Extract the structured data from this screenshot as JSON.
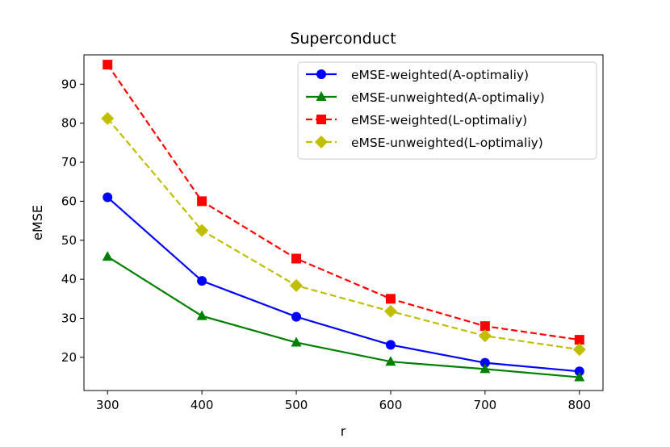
{
  "chart_data": {
    "type": "line",
    "title": "Superconduct",
    "xlabel": "r",
    "ylabel": "eMSE",
    "x": [
      300,
      400,
      500,
      600,
      700,
      800
    ],
    "xlim": [
      275,
      825
    ],
    "ylim": [
      11.5,
      97.5
    ],
    "xticks": [
      300,
      400,
      500,
      600,
      700,
      800
    ],
    "yticks": [
      20,
      30,
      40,
      50,
      60,
      70,
      80,
      90
    ],
    "grid": false,
    "legend_position": "top-right",
    "series": [
      {
        "name": "eMSE-weighted(A-optimaliy)",
        "values": [
          61.0,
          39.6,
          30.4,
          23.2,
          18.6,
          16.4
        ],
        "color": "#0000ff",
        "linestyle": "solid",
        "marker": "circle"
      },
      {
        "name": "eMSE-unweighted(A-optimaliy)",
        "values": [
          45.8,
          30.6,
          23.8,
          18.9,
          17.0,
          14.9
        ],
        "color": "#008000",
        "linestyle": "solid",
        "marker": "triangle"
      },
      {
        "name": "eMSE-weighted(L-optimaliy)",
        "values": [
          95.0,
          60.0,
          45.3,
          35.0,
          28.0,
          24.5
        ],
        "color": "#ff0000",
        "linestyle": "dashed",
        "marker": "square"
      },
      {
        "name": "eMSE-unweighted(L-optimaliy)",
        "values": [
          81.2,
          52.5,
          38.4,
          31.8,
          25.5,
          22.0
        ],
        "color": "#bfbf00",
        "linestyle": "dashed",
        "marker": "diamond"
      }
    ]
  }
}
